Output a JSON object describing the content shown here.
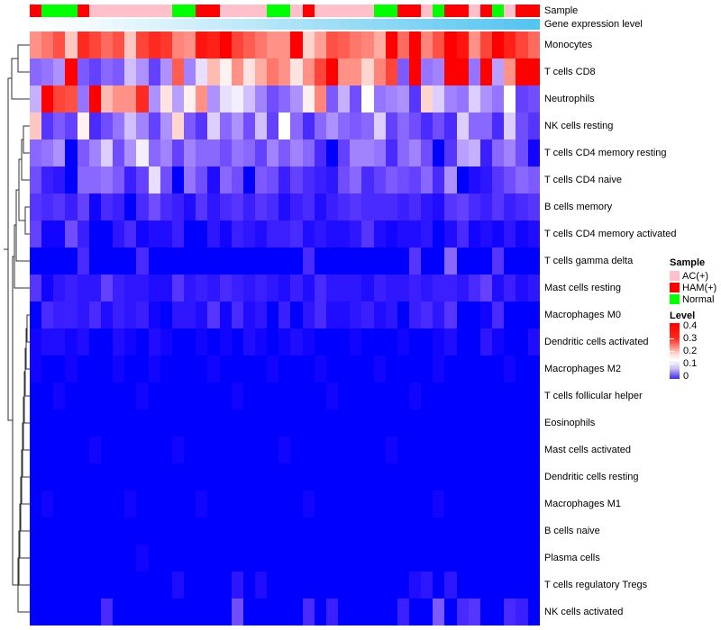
{
  "annotations": {
    "sample_label": "Sample",
    "gene_label": "Gene expression level",
    "sample_colors": {
      "AC(+)": "#ffc0cb",
      "HAM(+)": "#ff0000",
      "Normal": "#00ff00"
    },
    "gene_gradient": {
      "start": "#ffffff",
      "end": "#54c4f0"
    }
  },
  "legend": {
    "sample_title": "Sample",
    "sample_items": [
      {
        "label": "AC(+)",
        "color": "#ffc0cb"
      },
      {
        "label": "HAM(+)",
        "color": "#ff0000"
      },
      {
        "label": "Normal",
        "color": "#00ff00"
      }
    ],
    "level_title": "Level",
    "level_ticks": [
      "0.4",
      "0.3",
      "0.2",
      "0.1",
      "0"
    ]
  },
  "chart_data": {
    "type": "heatmap",
    "title": "",
    "n_columns": 43,
    "value_range": [
      0,
      0.45
    ],
    "colormap": {
      "low": "#0000ff",
      "mid": "#ffffff",
      "high": "#ff0000",
      "midpoint": 0.2,
      "max": 0.4
    },
    "legend_position": "right",
    "column_annotation_sample": [
      "HAM(+)",
      "Normal",
      "Normal",
      "Normal",
      "HAM(+)",
      "AC(+)",
      "AC(+)",
      "AC(+)",
      "AC(+)",
      "AC(+)",
      "AC(+)",
      "AC(+)",
      "Normal",
      "Normal",
      "HAM(+)",
      "HAM(+)",
      "AC(+)",
      "AC(+)",
      "AC(+)",
      "AC(+)",
      "Normal",
      "Normal",
      "AC(+)",
      "HAM(+)",
      "AC(+)",
      "AC(+)",
      "AC(+)",
      "AC(+)",
      "AC(+)",
      "Normal",
      "Normal",
      "HAM(+)",
      "HAM(+)",
      "AC(+)",
      "Normal",
      "HAM(+)",
      "HAM(+)",
      "AC(+)",
      "HAM(+)",
      "Normal",
      "AC(+)",
      "HAM(+)",
      "HAM(+)"
    ],
    "rows": [
      "Monocytes",
      "T cells CD8",
      "Neutrophils",
      "NK cells resting",
      "T cells CD4 memory resting",
      "T cells CD4 naive",
      "B cells memory",
      "T cells CD4 memory activated",
      "T cells gamma delta",
      "Mast cells resting",
      "Macrophages M0",
      "Dendritic cells activated",
      "Macrophages M2",
      "T cells follicular helper",
      "Eosinophils",
      "Mast cells activated",
      "Dendritic cells resting",
      "Macrophages M1",
      "B cells naive",
      "Plasma cells",
      "T cells regulatory  Tregs",
      "NK cells activated"
    ],
    "values": [
      [
        0.28,
        0.3,
        0.33,
        0.24,
        0.36,
        0.34,
        0.31,
        0.33,
        0.24,
        0.34,
        0.36,
        0.35,
        0.29,
        0.28,
        0.38,
        0.37,
        0.4,
        0.34,
        0.32,
        0.3,
        0.28,
        0.28,
        0.4,
        0.23,
        0.27,
        0.33,
        0.32,
        0.3,
        0.29,
        0.26,
        0.42,
        0.31,
        0.41,
        0.29,
        0.33,
        0.43,
        0.38,
        0.28,
        0.34,
        0.43,
        0.37,
        0.34,
        0.31
      ],
      [
        0.1,
        0.11,
        0.13,
        0.42,
        0.09,
        0.07,
        0.1,
        0.09,
        0.16,
        0.13,
        0.07,
        0.13,
        0.32,
        0.12,
        0.18,
        0.25,
        0.21,
        0.28,
        0.22,
        0.26,
        0.3,
        0.28,
        0.22,
        0.28,
        0.34,
        0.42,
        0.28,
        0.28,
        0.23,
        0.29,
        0.34,
        0.09,
        0.42,
        0.11,
        0.12,
        0.43,
        0.4,
        0.11,
        0.42,
        0.14,
        0.28,
        0.42,
        0.4
      ],
      [
        0.15,
        0.43,
        0.34,
        0.33,
        0.11,
        0.42,
        0.25,
        0.28,
        0.28,
        0.36,
        0.13,
        0.22,
        0.14,
        0.21,
        0.28,
        0.13,
        0.18,
        0.19,
        0.16,
        0.12,
        0.08,
        0.1,
        0.13,
        0.21,
        0.29,
        0.09,
        0.15,
        0.08,
        0.2,
        0.11,
        0.12,
        0.13,
        0.06,
        0.23,
        0.17,
        0.12,
        0.11,
        0.17,
        0.13,
        0.11,
        0.2,
        0.07,
        0.08
      ],
      [
        0.24,
        0.06,
        0.09,
        0.07,
        0.21,
        0.05,
        0.08,
        0.11,
        0.16,
        0.12,
        0.07,
        0.13,
        0.23,
        0.09,
        0.06,
        0.17,
        0.1,
        0.13,
        0.08,
        0.16,
        0.07,
        0.2,
        0.1,
        0.05,
        0.1,
        0.13,
        0.1,
        0.09,
        0.1,
        0.17,
        0.07,
        0.1,
        0.08,
        0.05,
        0.08,
        0.05,
        0.17,
        0.1,
        0.1,
        0.05,
        0.17,
        0.08,
        0.06
      ],
      [
        0.1,
        0.11,
        0.13,
        0.0,
        0.09,
        0.12,
        0.17,
        0.08,
        0.13,
        0.19,
        0.1,
        0.12,
        0.07,
        0.12,
        0.1,
        0.1,
        0.08,
        0.11,
        0.1,
        0.07,
        0.12,
        0.09,
        0.12,
        0.1,
        0.05,
        0.0,
        0.07,
        0.12,
        0.12,
        0.11,
        0.05,
        0.1,
        0.12,
        0.08,
        0.0,
        0.06,
        0.14,
        0.15,
        0.04,
        0.1,
        0.12,
        0.08,
        0.01
      ],
      [
        0.08,
        0.04,
        0.03,
        0.0,
        0.1,
        0.1,
        0.11,
        0.09,
        0.04,
        0.07,
        0.18,
        0.08,
        0.0,
        0.11,
        0.08,
        0.02,
        0.1,
        0.08,
        0.0,
        0.09,
        0.08,
        0.04,
        0.07,
        0.05,
        0.04,
        0.03,
        0.08,
        0.1,
        0.05,
        0.07,
        0.09,
        0.08,
        0.07,
        0.1,
        0.05,
        0.13,
        0.0,
        0.02,
        0.03,
        0.06,
        0.08,
        0.1,
        0.09
      ],
      [
        0.06,
        0.05,
        0.06,
        0.04,
        0.07,
        0.01,
        0.05,
        0.04,
        0.0,
        0.05,
        0.08,
        0.05,
        0.04,
        0.02,
        0.06,
        0.03,
        0.05,
        0.06,
        0.04,
        0.06,
        0.05,
        0.02,
        0.04,
        0.05,
        0.02,
        0.04,
        0.05,
        0.06,
        0.05,
        0.05,
        0.05,
        0.04,
        0.05,
        0.03,
        0.02,
        0.06,
        0.07,
        0.05,
        0.04,
        0.06,
        0.04,
        0.05,
        0.06
      ],
      [
        0.07,
        0.01,
        0.01,
        0.08,
        0.04,
        0.0,
        0.0,
        0.03,
        0.05,
        0.01,
        0.02,
        0.02,
        0.04,
        0.0,
        0.0,
        0.03,
        0.01,
        0.04,
        0.03,
        0.02,
        0.04,
        0.04,
        0.05,
        0.02,
        0.03,
        0.02,
        0.02,
        0.03,
        0.06,
        0.02,
        0.01,
        0.02,
        0.02,
        0.03,
        0.0,
        0.02,
        0.05,
        0.01,
        0.02,
        0.01,
        0.03,
        0.01,
        0.02
      ],
      [
        0.0,
        0.0,
        0.0,
        0.0,
        0.05,
        0.0,
        0.0,
        0.0,
        0.0,
        0.05,
        0.0,
        0.0,
        0.0,
        0.0,
        0.0,
        0.0,
        0.0,
        0.0,
        0.0,
        0.0,
        0.0,
        0.0,
        0.0,
        0.05,
        0.0,
        0.0,
        0.0,
        0.0,
        0.0,
        0.0,
        0.0,
        0.0,
        0.06,
        0.0,
        0.0,
        0.1,
        0.0,
        0.0,
        0.0,
        0.06,
        0.0,
        0.0,
        0.0
      ],
      [
        0.06,
        0.01,
        0.03,
        0.04,
        0.03,
        0.03,
        0.07,
        0.04,
        0.03,
        0.03,
        0.02,
        0.02,
        0.06,
        0.03,
        0.04,
        0.03,
        0.05,
        0.04,
        0.03,
        0.04,
        0.03,
        0.02,
        0.04,
        0.02,
        0.05,
        0.03,
        0.03,
        0.03,
        0.02,
        0.04,
        0.03,
        0.03,
        0.04,
        0.03,
        0.04,
        0.04,
        0.03,
        0.05,
        0.07,
        0.02,
        0.04,
        0.02,
        0.03
      ],
      [
        0.0,
        0.05,
        0.04,
        0.04,
        0.03,
        0.05,
        0.02,
        0.04,
        0.03,
        0.04,
        0.01,
        0.0,
        0.03,
        0.03,
        0.02,
        0.06,
        0.01,
        0.05,
        0.02,
        0.03,
        0.0,
        0.04,
        0.0,
        0.03,
        0.05,
        0.02,
        0.02,
        0.03,
        0.04,
        0.02,
        0.03,
        0.0,
        0.04,
        0.05,
        0.03,
        0.06,
        0.0,
        0.0,
        0.01,
        0.05,
        0.0,
        0.0,
        0.0
      ],
      [
        0.01,
        0.02,
        0.02,
        0.01,
        0.02,
        0.0,
        0.0,
        0.02,
        0.01,
        0.0,
        0.02,
        0.01,
        0.0,
        0.0,
        0.01,
        0.0,
        0.01,
        0.0,
        0.02,
        0.01,
        0.0,
        0.01,
        0.02,
        0.01,
        0.0,
        0.0,
        0.0,
        0.01,
        0.0,
        0.0,
        0.0,
        0.01,
        0.0,
        0.0,
        0.01,
        0.02,
        0.0,
        0.0,
        0.03,
        0.01,
        0.0,
        0.0,
        0.02
      ],
      [
        0.01,
        0.0,
        0.0,
        0.01,
        0.0,
        0.0,
        0.0,
        0.01,
        0.0,
        0.0,
        0.01,
        0.0,
        0.0,
        0.0,
        0.0,
        0.01,
        0.0,
        0.0,
        0.0,
        0.0,
        0.01,
        0.0,
        0.0,
        0.0,
        0.01,
        0.0,
        0.0,
        0.0,
        0.0,
        0.01,
        0.0,
        0.0,
        0.0,
        0.0,
        0.01,
        0.0,
        0.0,
        0.0,
        0.0,
        0.0,
        0.01,
        0.0,
        0.0
      ],
      [
        0.0,
        0.0,
        0.01,
        0.0,
        0.0,
        0.0,
        0.0,
        0.0,
        0.0,
        0.01,
        0.0,
        0.0,
        0.0,
        0.0,
        0.0,
        0.0,
        0.0,
        0.01,
        0.0,
        0.0,
        0.0,
        0.0,
        0.0,
        0.0,
        0.0,
        0.01,
        0.0,
        0.0,
        0.0,
        0.0,
        0.0,
        0.0,
        0.01,
        0.0,
        0.0,
        0.0,
        0.0,
        0.0,
        0.0,
        0.0,
        0.0,
        0.0,
        0.0
      ],
      [
        0.0,
        0.0,
        0.0,
        0.0,
        0.0,
        0.0,
        0.0,
        0.0,
        0.0,
        0.0,
        0.0,
        0.0,
        0.0,
        0.0,
        0.0,
        0.0,
        0.0,
        0.0,
        0.0,
        0.0,
        0.0,
        0.0,
        0.0,
        0.0,
        0.0,
        0.0,
        0.0,
        0.0,
        0.0,
        0.0,
        0.0,
        0.0,
        0.0,
        0.0,
        0.0,
        0.0,
        0.0,
        0.0,
        0.0,
        0.0,
        0.0,
        0.0,
        0.0
      ],
      [
        0.0,
        0.0,
        0.0,
        0.0,
        0.0,
        0.01,
        0.0,
        0.0,
        0.0,
        0.0,
        0.0,
        0.0,
        0.01,
        0.0,
        0.0,
        0.0,
        0.0,
        0.0,
        0.0,
        0.0,
        0.0,
        0.01,
        0.0,
        0.0,
        0.0,
        0.0,
        0.0,
        0.0,
        0.0,
        0.0,
        0.01,
        0.0,
        0.0,
        0.0,
        0.0,
        0.0,
        0.0,
        0.0,
        0.0,
        0.0,
        0.0,
        0.0,
        0.0
      ],
      [
        0.0,
        0.0,
        0.0,
        0.0,
        0.0,
        0.0,
        0.0,
        0.0,
        0.0,
        0.0,
        0.0,
        0.0,
        0.0,
        0.0,
        0.0,
        0.0,
        0.0,
        0.0,
        0.0,
        0.0,
        0.0,
        0.0,
        0.0,
        0.0,
        0.0,
        0.0,
        0.0,
        0.0,
        0.0,
        0.0,
        0.0,
        0.0,
        0.0,
        0.0,
        0.0,
        0.0,
        0.0,
        0.0,
        0.0,
        0.0,
        0.0,
        0.0,
        0.0
      ],
      [
        0.0,
        0.01,
        0.0,
        0.0,
        0.0,
        0.0,
        0.0,
        0.0,
        0.01,
        0.0,
        0.0,
        0.0,
        0.0,
        0.0,
        0.01,
        0.0,
        0.0,
        0.0,
        0.0,
        0.0,
        0.0,
        0.0,
        0.0,
        0.01,
        0.0,
        0.0,
        0.0,
        0.0,
        0.0,
        0.0,
        0.0,
        0.0,
        0.0,
        0.0,
        0.01,
        0.0,
        0.0,
        0.0,
        0.0,
        0.0,
        0.0,
        0.0,
        0.0
      ],
      [
        0.0,
        0.0,
        0.0,
        0.0,
        0.0,
        0.0,
        0.0,
        0.0,
        0.0,
        0.0,
        0.0,
        0.0,
        0.0,
        0.0,
        0.0,
        0.0,
        0.0,
        0.0,
        0.0,
        0.0,
        0.0,
        0.0,
        0.0,
        0.0,
        0.0,
        0.0,
        0.0,
        0.0,
        0.0,
        0.0,
        0.0,
        0.0,
        0.0,
        0.0,
        0.0,
        0.0,
        0.0,
        0.0,
        0.0,
        0.0,
        0.0,
        0.0,
        0.0
      ],
      [
        0.0,
        0.0,
        0.0,
        0.0,
        0.0,
        0.0,
        0.0,
        0.0,
        0.0,
        0.01,
        0.0,
        0.0,
        0.0,
        0.0,
        0.0,
        0.0,
        0.0,
        0.0,
        0.0,
        0.0,
        0.0,
        0.0,
        0.0,
        0.0,
        0.0,
        0.0,
        0.0,
        0.0,
        0.0,
        0.0,
        0.0,
        0.0,
        0.0,
        0.0,
        0.0,
        0.0,
        0.0,
        0.0,
        0.0,
        0.0,
        0.0,
        0.0,
        0.0
      ],
      [
        0.0,
        0.0,
        0.0,
        0.0,
        0.0,
        0.0,
        0.0,
        0.0,
        0.0,
        0.0,
        0.0,
        0.0,
        0.02,
        0.0,
        0.0,
        0.0,
        0.0,
        0.03,
        0.0,
        0.02,
        0.0,
        0.0,
        0.0,
        0.0,
        0.0,
        0.0,
        0.0,
        0.0,
        0.0,
        0.0,
        0.0,
        0.0,
        0.02,
        0.03,
        0.0,
        0.03,
        0.0,
        0.0,
        0.0,
        0.0,
        0.0,
        0.0,
        0.0
      ],
      [
        0.0,
        0.0,
        0.0,
        0.0,
        0.0,
        0.0,
        0.05,
        0.0,
        0.0,
        0.0,
        0.0,
        0.0,
        0.0,
        0.0,
        0.0,
        0.0,
        0.0,
        0.08,
        0.0,
        0.0,
        0.0,
        0.0,
        0.0,
        0.05,
        0.0,
        0.04,
        0.0,
        0.0,
        0.0,
        0.0,
        0.0,
        0.04,
        0.0,
        0.0,
        0.09,
        0.0,
        0.05,
        0.06,
        0.0,
        0.0,
        0.05,
        0.04,
        0.0
      ]
    ]
  }
}
